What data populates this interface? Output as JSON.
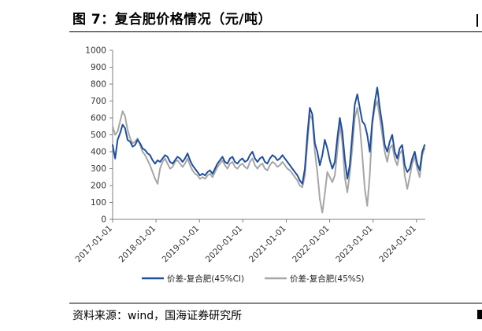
{
  "figure": {
    "title": "图 7：复合肥价格情况（元/吨）",
    "source": "资料来源：wind，国海证券研究所"
  },
  "chart_data": {
    "type": "line",
    "title": "",
    "xlabel": "",
    "ylabel": "",
    "ylim": [
      0,
      1000
    ],
    "y_ticks": [
      0,
      100,
      200,
      300,
      400,
      500,
      600,
      700,
      800,
      900,
      1000
    ],
    "y_tick_labels": [
      "0",
      "100",
      "200",
      "300",
      "400",
      "500",
      "600",
      "700",
      "800",
      "900",
      "1000"
    ],
    "xlim": [
      "2017-01-01",
      "2024-03-15"
    ],
    "x_ticks": [
      "2017-01-01",
      "2018-01-01",
      "2019-01-01",
      "2020-01-01",
      "2021-01-01",
      "2022-01-01",
      "2023-01-01",
      "2024-01-01"
    ],
    "grid": false,
    "legend_position": "bottom",
    "colors": {
      "series1": "#1f4e9c",
      "series2": "#a6a6a6"
    },
    "series": [
      {
        "name": "价差-复合肥(45%Cl)",
        "points": [
          [
            "2017-01-01",
            440
          ],
          [
            "2017-01-22",
            360
          ],
          [
            "2017-02-12",
            470
          ],
          [
            "2017-03-05",
            510
          ],
          [
            "2017-03-26",
            560
          ],
          [
            "2017-04-16",
            540
          ],
          [
            "2017-05-07",
            470
          ],
          [
            "2017-05-28",
            460
          ],
          [
            "2017-06-18",
            430
          ],
          [
            "2017-07-09",
            440
          ],
          [
            "2017-07-30",
            470
          ],
          [
            "2017-08-20",
            450
          ],
          [
            "2017-09-10",
            420
          ],
          [
            "2017-10-01",
            410
          ],
          [
            "2017-10-22",
            390
          ],
          [
            "2017-11-12",
            380
          ],
          [
            "2017-12-03",
            350
          ],
          [
            "2017-12-24",
            330
          ],
          [
            "2018-01-14",
            350
          ],
          [
            "2018-02-04",
            340
          ],
          [
            "2018-02-25",
            360
          ],
          [
            "2018-03-18",
            380
          ],
          [
            "2018-04-08",
            370
          ],
          [
            "2018-04-29",
            340
          ],
          [
            "2018-05-20",
            330
          ],
          [
            "2018-06-10",
            350
          ],
          [
            "2018-07-01",
            370
          ],
          [
            "2018-07-22",
            360
          ],
          [
            "2018-08-12",
            340
          ],
          [
            "2018-09-02",
            360
          ],
          [
            "2018-09-23",
            390
          ],
          [
            "2018-10-14",
            350
          ],
          [
            "2018-11-04",
            320
          ],
          [
            "2018-11-25",
            300
          ],
          [
            "2018-12-16",
            280
          ],
          [
            "2019-01-06",
            260
          ],
          [
            "2019-01-27",
            270
          ],
          [
            "2019-02-17",
            260
          ],
          [
            "2019-03-10",
            280
          ],
          [
            "2019-03-31",
            290
          ],
          [
            "2019-04-21",
            270
          ],
          [
            "2019-05-12",
            300
          ],
          [
            "2019-06-02",
            330
          ],
          [
            "2019-06-23",
            350
          ],
          [
            "2019-07-14",
            370
          ],
          [
            "2019-08-04",
            340
          ],
          [
            "2019-08-25",
            330
          ],
          [
            "2019-09-15",
            360
          ],
          [
            "2019-10-06",
            370
          ],
          [
            "2019-10-27",
            340
          ],
          [
            "2019-11-17",
            330
          ],
          [
            "2019-12-08",
            350
          ],
          [
            "2019-12-29",
            360
          ],
          [
            "2020-01-19",
            340
          ],
          [
            "2020-02-09",
            350
          ],
          [
            "2020-03-01",
            380
          ],
          [
            "2020-03-22",
            400
          ],
          [
            "2020-04-12",
            360
          ],
          [
            "2020-05-03",
            340
          ],
          [
            "2020-05-24",
            360
          ],
          [
            "2020-06-14",
            370
          ],
          [
            "2020-07-05",
            340
          ],
          [
            "2020-07-26",
            330
          ],
          [
            "2020-08-16",
            360
          ],
          [
            "2020-09-06",
            380
          ],
          [
            "2020-09-27",
            370
          ],
          [
            "2020-10-18",
            350
          ],
          [
            "2020-11-08",
            360
          ],
          [
            "2020-11-29",
            380
          ],
          [
            "2020-12-20",
            360
          ],
          [
            "2021-01-10",
            340
          ],
          [
            "2021-01-31",
            320
          ],
          [
            "2021-02-21",
            300
          ],
          [
            "2021-03-14",
            280
          ],
          [
            "2021-04-04",
            260
          ],
          [
            "2021-04-25",
            230
          ],
          [
            "2021-05-16",
            210
          ],
          [
            "2021-06-06",
            300
          ],
          [
            "2021-06-27",
            500
          ],
          [
            "2021-07-18",
            660
          ],
          [
            "2021-08-08",
            620
          ],
          [
            "2021-08-29",
            450
          ],
          [
            "2021-09-19",
            400
          ],
          [
            "2021-10-10",
            320
          ],
          [
            "2021-10-31",
            380
          ],
          [
            "2021-11-21",
            470
          ],
          [
            "2021-12-12",
            420
          ],
          [
            "2022-01-02",
            350
          ],
          [
            "2022-01-23",
            300
          ],
          [
            "2022-02-13",
            340
          ],
          [
            "2022-03-06",
            480
          ],
          [
            "2022-03-27",
            600
          ],
          [
            "2022-04-17",
            520
          ],
          [
            "2022-05-08",
            360
          ],
          [
            "2022-05-29",
            240
          ],
          [
            "2022-06-19",
            320
          ],
          [
            "2022-07-10",
            500
          ],
          [
            "2022-07-31",
            680
          ],
          [
            "2022-08-21",
            740
          ],
          [
            "2022-09-11",
            660
          ],
          [
            "2022-10-02",
            580
          ],
          [
            "2022-10-23",
            560
          ],
          [
            "2022-11-13",
            500
          ],
          [
            "2022-12-04",
            400
          ],
          [
            "2022-12-25",
            580
          ],
          [
            "2023-01-15",
            690
          ],
          [
            "2023-02-05",
            780
          ],
          [
            "2023-02-26",
            660
          ],
          [
            "2023-03-19",
            560
          ],
          [
            "2023-04-09",
            440
          ],
          [
            "2023-04-30",
            400
          ],
          [
            "2023-05-21",
            460
          ],
          [
            "2023-06-11",
            500
          ],
          [
            "2023-07-02",
            400
          ],
          [
            "2023-07-23",
            360
          ],
          [
            "2023-08-13",
            420
          ],
          [
            "2023-09-03",
            440
          ],
          [
            "2023-09-24",
            320
          ],
          [
            "2023-10-15",
            280
          ],
          [
            "2023-11-05",
            300
          ],
          [
            "2023-11-26",
            360
          ],
          [
            "2023-12-17",
            400
          ],
          [
            "2024-01-07",
            330
          ],
          [
            "2024-01-28",
            290
          ],
          [
            "2024-02-18",
            400
          ],
          [
            "2024-03-10",
            440
          ]
        ]
      },
      {
        "name": "价差-复合肥(45%S)",
        "points": [
          [
            "2017-01-01",
            550
          ],
          [
            "2017-01-22",
            500
          ],
          [
            "2017-02-12",
            520
          ],
          [
            "2017-03-05",
            580
          ],
          [
            "2017-03-26",
            640
          ],
          [
            "2017-04-16",
            610
          ],
          [
            "2017-05-07",
            530
          ],
          [
            "2017-05-28",
            480
          ],
          [
            "2017-06-18",
            450
          ],
          [
            "2017-07-09",
            460
          ],
          [
            "2017-07-30",
            480
          ],
          [
            "2017-08-20",
            440
          ],
          [
            "2017-09-10",
            400
          ],
          [
            "2017-10-01",
            380
          ],
          [
            "2017-10-22",
            350
          ],
          [
            "2017-11-12",
            320
          ],
          [
            "2017-12-03",
            280
          ],
          [
            "2017-12-24",
            240
          ],
          [
            "2018-01-14",
            210
          ],
          [
            "2018-02-04",
            300
          ],
          [
            "2018-02-25",
            340
          ],
          [
            "2018-03-18",
            360
          ],
          [
            "2018-04-08",
            330
          ],
          [
            "2018-04-29",
            300
          ],
          [
            "2018-05-20",
            310
          ],
          [
            "2018-06-10",
            340
          ],
          [
            "2018-07-01",
            350
          ],
          [
            "2018-07-22",
            330
          ],
          [
            "2018-08-12",
            310
          ],
          [
            "2018-09-02",
            330
          ],
          [
            "2018-09-23",
            360
          ],
          [
            "2018-10-14",
            320
          ],
          [
            "2018-11-04",
            290
          ],
          [
            "2018-11-25",
            270
          ],
          [
            "2018-12-16",
            260
          ],
          [
            "2019-01-06",
            240
          ],
          [
            "2019-01-27",
            250
          ],
          [
            "2019-02-17",
            240
          ],
          [
            "2019-03-10",
            260
          ],
          [
            "2019-03-31",
            270
          ],
          [
            "2019-04-21",
            250
          ],
          [
            "2019-05-12",
            280
          ],
          [
            "2019-06-02",
            310
          ],
          [
            "2019-06-23",
            330
          ],
          [
            "2019-07-14",
            350
          ],
          [
            "2019-08-04",
            320
          ],
          [
            "2019-08-25",
            300
          ],
          [
            "2019-09-15",
            330
          ],
          [
            "2019-10-06",
            340
          ],
          [
            "2019-10-27",
            310
          ],
          [
            "2019-11-17",
            300
          ],
          [
            "2019-12-08",
            320
          ],
          [
            "2019-12-29",
            330
          ],
          [
            "2020-01-19",
            310
          ],
          [
            "2020-02-09",
            300
          ],
          [
            "2020-03-01",
            340
          ],
          [
            "2020-03-22",
            360
          ],
          [
            "2020-04-12",
            320
          ],
          [
            "2020-05-03",
            300
          ],
          [
            "2020-05-24",
            320
          ],
          [
            "2020-06-14",
            330
          ],
          [
            "2020-07-05",
            300
          ],
          [
            "2020-07-26",
            290
          ],
          [
            "2020-08-16",
            320
          ],
          [
            "2020-09-06",
            340
          ],
          [
            "2020-09-27",
            330
          ],
          [
            "2020-10-18",
            310
          ],
          [
            "2020-11-08",
            320
          ],
          [
            "2020-11-29",
            340
          ],
          [
            "2020-12-20",
            320
          ],
          [
            "2021-01-10",
            300
          ],
          [
            "2021-01-31",
            290
          ],
          [
            "2021-02-21",
            270
          ],
          [
            "2021-03-14",
            250
          ],
          [
            "2021-04-04",
            230
          ],
          [
            "2021-04-25",
            200
          ],
          [
            "2021-05-16",
            190
          ],
          [
            "2021-06-06",
            260
          ],
          [
            "2021-06-27",
            450
          ],
          [
            "2021-07-18",
            620
          ],
          [
            "2021-08-08",
            590
          ],
          [
            "2021-08-29",
            400
          ],
          [
            "2021-09-19",
            280
          ],
          [
            "2021-10-10",
            120
          ],
          [
            "2021-10-31",
            40
          ],
          [
            "2021-11-21",
            150
          ],
          [
            "2021-12-12",
            280
          ],
          [
            "2022-01-02",
            250
          ],
          [
            "2022-01-23",
            220
          ],
          [
            "2022-02-13",
            260
          ],
          [
            "2022-03-06",
            400
          ],
          [
            "2022-03-27",
            560
          ],
          [
            "2022-04-17",
            460
          ],
          [
            "2022-05-08",
            250
          ],
          [
            "2022-05-29",
            160
          ],
          [
            "2022-06-19",
            270
          ],
          [
            "2022-07-10",
            420
          ],
          [
            "2022-07-31",
            600
          ],
          [
            "2022-08-21",
            660
          ],
          [
            "2022-09-11",
            560
          ],
          [
            "2022-10-02",
            380
          ],
          [
            "2022-10-23",
            180
          ],
          [
            "2022-11-13",
            80
          ],
          [
            "2022-12-04",
            260
          ],
          [
            "2022-12-25",
            560
          ],
          [
            "2023-01-15",
            660
          ],
          [
            "2023-02-05",
            700
          ],
          [
            "2023-02-26",
            600
          ],
          [
            "2023-03-19",
            500
          ],
          [
            "2023-04-09",
            400
          ],
          [
            "2023-04-30",
            340
          ],
          [
            "2023-05-21",
            420
          ],
          [
            "2023-06-11",
            440
          ],
          [
            "2023-07-02",
            360
          ],
          [
            "2023-07-23",
            320
          ],
          [
            "2023-08-13",
            390
          ],
          [
            "2023-09-03",
            410
          ],
          [
            "2023-09-24",
            260
          ],
          [
            "2023-10-15",
            180
          ],
          [
            "2023-11-05",
            250
          ],
          [
            "2023-11-26",
            330
          ],
          [
            "2023-12-17",
            370
          ],
          [
            "2024-01-07",
            300
          ],
          [
            "2024-01-28",
            250
          ],
          [
            "2024-02-18",
            380
          ],
          [
            "2024-03-10",
            420
          ]
        ]
      }
    ]
  }
}
